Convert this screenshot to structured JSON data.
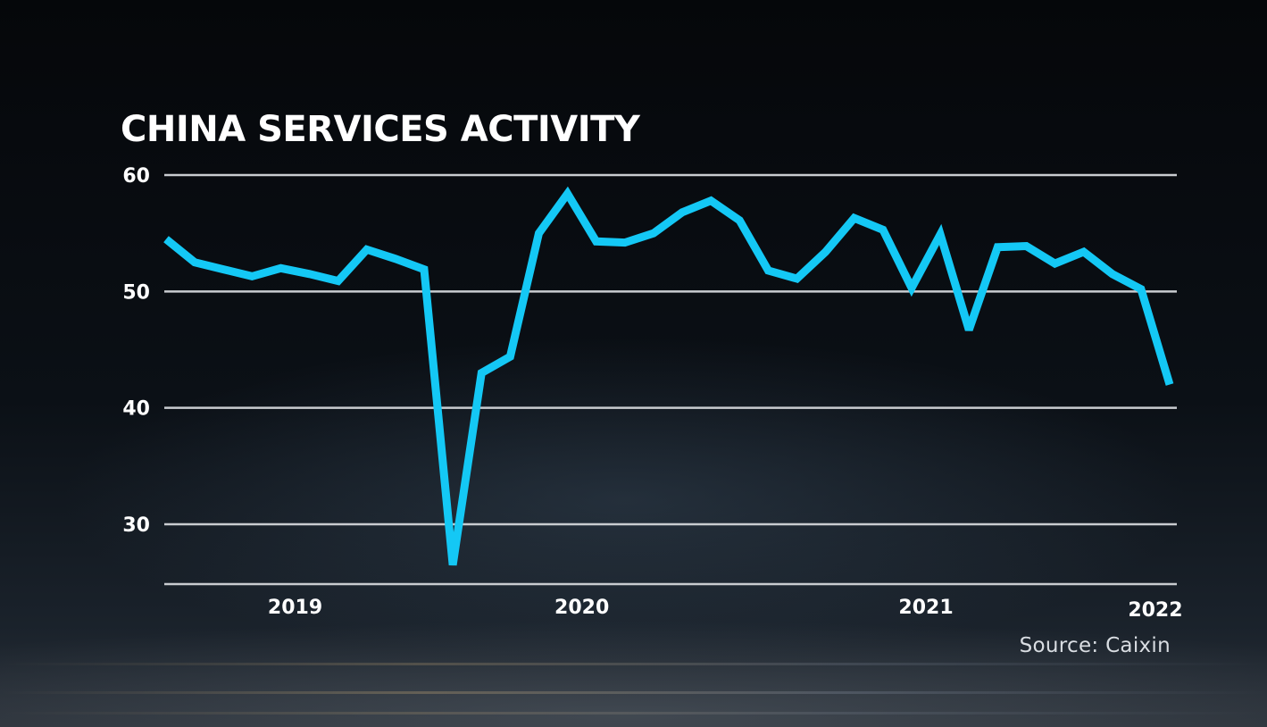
{
  "chart_data": {
    "type": "line",
    "title": "CHINA SERVICES ACTIVITY",
    "source": "Source: Caixin",
    "ylim": [
      25,
      60
    ],
    "yticks": [
      30,
      40,
      50,
      60
    ],
    "xlabels": [
      {
        "label": "2019",
        "at": 4.5
      },
      {
        "label": "2020",
        "at": 14.5
      },
      {
        "label": "2021",
        "at": 26.5
      },
      {
        "label": "2022",
        "at": 34.5
      }
    ],
    "grid": true,
    "series": [
      {
        "color": "#14c8f5",
        "values": [
          54.5,
          52.5,
          51.9,
          51.3,
          52.0,
          51.5,
          50.9,
          53.6,
          52.8,
          51.9,
          26.5,
          43.0,
          44.4,
          55.0,
          58.4,
          54.3,
          54.2,
          55.0,
          56.8,
          57.8,
          56.1,
          51.8,
          51.1,
          53.4,
          56.3,
          55.3,
          50.3,
          54.9,
          46.7,
          53.8,
          53.9,
          52.4,
          53.4,
          51.5,
          50.2,
          42.0
        ]
      }
    ]
  }
}
